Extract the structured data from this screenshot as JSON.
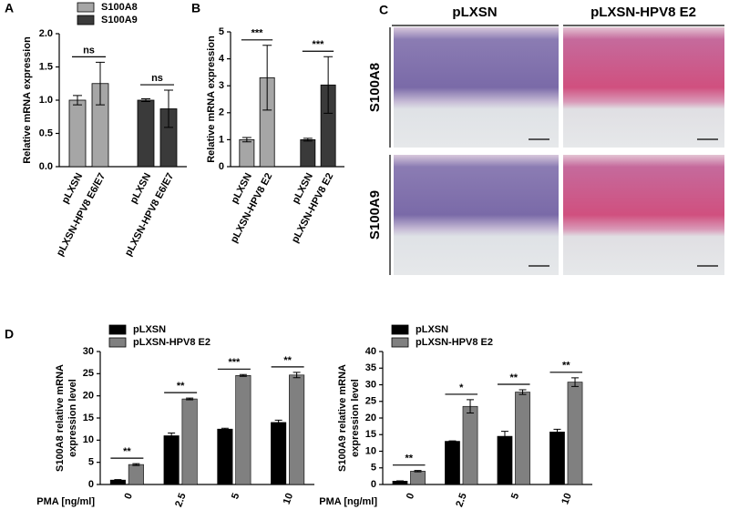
{
  "panel_labels": [
    "A",
    "B",
    "C",
    "D"
  ],
  "histology": {
    "columns": [
      "pLXSN",
      "pLXSN-HPV8 E2"
    ],
    "rows": [
      "S100A8",
      "S100A9"
    ]
  },
  "chart_data": [
    {
      "type": "bar",
      "ylabel": [
        "Relative mRNA expression"
      ],
      "categories": [
        "pLXSN",
        "pLXSN-HPV8 E6/E7",
        "pLXSN",
        "pLXSN-HPV8 E6/E7"
      ],
      "values": [
        1.0,
        1.25,
        1.0,
        0.87
      ],
      "errors": [
        0.07,
        0.32,
        0.02,
        0.28
      ],
      "colors": [
        "#a6a6a6",
        "#a6a6a6",
        "#3a3a3a",
        "#3a3a3a"
      ],
      "legend": [
        {
          "name": "S100A8",
          "color": "#a6a6a6"
        },
        {
          "name": "S100A9",
          "color": "#3a3a3a"
        }
      ],
      "significance": [
        "ns",
        "ns"
      ],
      "ylim": [
        0,
        2.0
      ],
      "yticks": [
        {
          "value": 0,
          "label": "0.0"
        },
        {
          "value": 0.5,
          "label": "0.5"
        },
        {
          "value": 1,
          "label": "1.0"
        },
        {
          "value": 1.5,
          "label": "1.5"
        },
        {
          "value": 2,
          "label": "2.0"
        }
      ]
    },
    {
      "type": "bar",
      "ylabel": [
        "Relative mRNA expression"
      ],
      "categories": [
        "pLXSN",
        "pLXSN-HPV8 E2",
        "pLXSN",
        "pLXSN-HPV8 E2"
      ],
      "values": [
        1.0,
        3.3,
        1.0,
        3.03
      ],
      "errors": [
        0.08,
        1.2,
        0.05,
        1.05
      ],
      "colors": [
        "#a6a6a6",
        "#a6a6a6",
        "#3a3a3a",
        "#3a3a3a"
      ],
      "significance": [
        "***",
        "***"
      ],
      "ylim": [
        0,
        5
      ],
      "yticks": [
        0,
        1,
        2,
        3,
        4,
        5
      ]
    },
    {
      "type": "grouped_bar",
      "ylabel": [
        "S100A8 relative mRNA",
        "expression level"
      ],
      "xlabel": "PMA [ng/ml]",
      "categories": [
        "0",
        "2.5",
        "5",
        "10"
      ],
      "series": [
        {
          "name": "pLXSN",
          "color": "#000000",
          "values": [
            1.0,
            11.0,
            12.5,
            14.0
          ],
          "errors": [
            0.1,
            0.6,
            0.2,
            0.5
          ]
        },
        {
          "name": "pLXSN-HPV8 E2",
          "color": "#808080",
          "values": [
            4.5,
            19.3,
            24.6,
            24.7
          ],
          "errors": [
            0.2,
            0.2,
            0.2,
            0.6
          ]
        }
      ],
      "significance": [
        "**",
        "**",
        "***",
        "**"
      ],
      "ylim": [
        0,
        30
      ],
      "yticks": [
        0,
        5,
        10,
        15,
        20,
        25,
        30
      ]
    },
    {
      "type": "grouped_bar",
      "ylabel": [
        "S100A9 relative mRNA",
        "expression level"
      ],
      "xlabel": "PMA [ng/ml]",
      "categories": [
        "0",
        "2.5",
        "5",
        "10"
      ],
      "series": [
        {
          "name": "pLXSN",
          "color": "#000000",
          "values": [
            1.0,
            13.0,
            14.5,
            15.8
          ],
          "errors": [
            0.1,
            0.1,
            1.5,
            0.8
          ]
        },
        {
          "name": "pLXSN-HPV8 E2",
          "color": "#808080",
          "values": [
            4.0,
            23.5,
            27.8,
            30.8
          ],
          "errors": [
            0.2,
            2.0,
            0.7,
            1.3
          ]
        }
      ],
      "significance": [
        "**",
        "*",
        "**",
        "**"
      ],
      "ylim": [
        0,
        40
      ],
      "yticks": [
        0,
        5,
        10,
        15,
        20,
        25,
        30,
        35,
        40
      ]
    }
  ]
}
